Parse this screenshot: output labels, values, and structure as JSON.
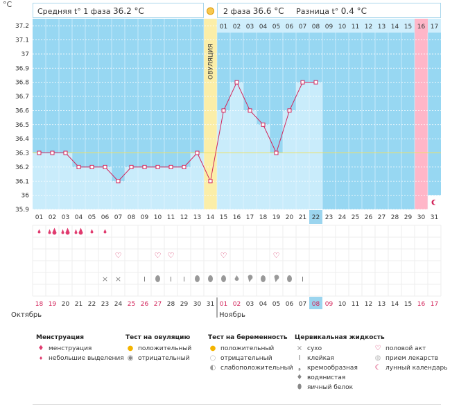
{
  "header": {
    "unit": "°C",
    "phase1_label": "Средняя t° 1 фаза",
    "phase1_value": "36.2 °C",
    "phase2_label": "2 фаза",
    "phase2_value": "36.6 °C",
    "diff_label": "Разница t°",
    "diff_value": "0.4 °C",
    "ovulation_label": "ОВУЛЯЦИЯ"
  },
  "colors": {
    "sky": "#97d7f2",
    "bar": "#c9ecfb",
    "ovulation": "#fbeea8",
    "pink": "#ffb6c8",
    "line": "#d2245a",
    "coverline": "#f0e060",
    "highlight": "#9bd5ef"
  },
  "chart_data": {
    "type": "line",
    "title": "",
    "ylabel": "°C",
    "ylim": [
      35.9,
      37.25
    ],
    "y_ticks": [
      "37.2",
      "37.1",
      "37",
      "36.9",
      "36.8",
      "36.7",
      "36.6",
      "36.5",
      "36.4",
      "36.3",
      "36.2",
      "36.1",
      "36",
      "35.9"
    ],
    "cycle_days": [
      "01",
      "02",
      "03",
      "04",
      "05",
      "06",
      "07",
      "08",
      "09",
      "10",
      "11",
      "12",
      "13",
      "14",
      "15",
      "16",
      "17",
      "18",
      "19",
      "20",
      "21",
      "22",
      "23",
      "24",
      "25",
      "26",
      "27",
      "28",
      "29",
      "30",
      "31"
    ],
    "phase2_days": [
      "01",
      "02",
      "03",
      "04",
      "05",
      "06",
      "07",
      "08",
      "09",
      "10",
      "11",
      "12",
      "13",
      "14",
      "15",
      "16",
      "17"
    ],
    "temperatures": [
      36.3,
      36.3,
      36.3,
      36.2,
      36.2,
      36.2,
      36.1,
      36.2,
      36.2,
      36.2,
      36.2,
      36.2,
      36.3,
      36.1,
      36.6,
      36.8,
      36.6,
      36.5,
      36.3,
      36.6,
      36.8,
      36.8
    ],
    "coverline": 36.3,
    "ovulation_day": 14,
    "current_day": 22,
    "pink_day": 30,
    "moon_day": 31,
    "calendar_dates": [
      "18",
      "19",
      "20",
      "21",
      "22",
      "23",
      "24",
      "25",
      "26",
      "27",
      "28",
      "29",
      "30",
      "31",
      "01",
      "02",
      "03",
      "04",
      "05",
      "06",
      "07",
      "08",
      "09",
      "10",
      "11",
      "12",
      "13",
      "14",
      "15",
      "16",
      "17"
    ],
    "weekend_dates": [
      1,
      2,
      8,
      9,
      10,
      15,
      16,
      22,
      23,
      30,
      31
    ],
    "month1": "Октябрь",
    "month2": "Ноябрь",
    "menstruation": {
      "1": "light",
      "2": "heavy",
      "3": "heavy",
      "4": "heavy",
      "5": "light",
      "6": "light"
    },
    "intercourse_days": [
      7,
      10,
      11,
      15,
      19
    ],
    "fluid": {
      "6": "dry",
      "7": "dry",
      "9": "sticky",
      "10": "egg",
      "11": "sticky",
      "12": "sticky",
      "13": "egg",
      "14": "egg",
      "15": "egg",
      "16": "watery",
      "17": "creamy",
      "18": "egg",
      "19": "creamy",
      "20": "egg",
      "21": "sticky"
    }
  },
  "legend": {
    "menstruation": {
      "title": "Менструация",
      "items": [
        {
          "icon": "drops-icon",
          "label": "менструация"
        },
        {
          "icon": "drop-icon",
          "label": "небольшие выделения"
        }
      ]
    },
    "ovulation_test": {
      "title": "Тест на овуляцию",
      "items": [
        {
          "icon": "sun-icon",
          "label": "положительный"
        },
        {
          "icon": "grey-circle-icon",
          "label": "отрицательный"
        }
      ]
    },
    "pregnancy_test": {
      "title": "Тест на беременность",
      "items": [
        {
          "icon": "sun-icon",
          "label": "положительный"
        },
        {
          "icon": "empty-circle-icon",
          "label": "отрицательный"
        },
        {
          "icon": "half-circle-icon",
          "label": "слабоположительный"
        }
      ]
    },
    "cervical_fluid": {
      "title": "Цервикальная жидкость",
      "items": [
        {
          "icon": "cross-icon",
          "label": "сухо"
        },
        {
          "icon": "sticky-icon",
          "label": "клейкая"
        },
        {
          "icon": "creamy-icon",
          "label": "кремообразная"
        },
        {
          "icon": "watery-icon",
          "label": "водянистая"
        },
        {
          "icon": "egg-icon",
          "label": "яичный белок"
        }
      ]
    },
    "other": {
      "items": [
        {
          "icon": "heart-icon",
          "label": "половой акт"
        },
        {
          "icon": "pill-icon",
          "label": "прием лекарств"
        },
        {
          "icon": "moon-icon",
          "label": "лунный календарь"
        }
      ]
    }
  }
}
